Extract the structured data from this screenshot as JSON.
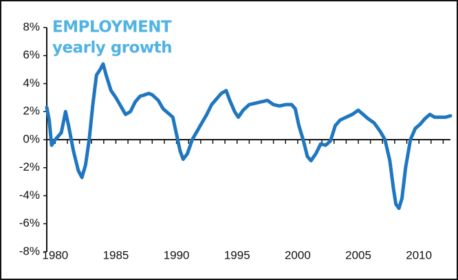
{
  "chart_data": {
    "type": "line",
    "title": "EMPLOYMENT",
    "subtitle": "yearly growth",
    "x": [
      1979.3,
      1979.5,
      1979.7,
      1980.0,
      1980.5,
      1980.85,
      1981.1,
      1981.5,
      1981.9,
      1982.2,
      1982.5,
      1982.8,
      1983.1,
      1983.4,
      1983.7,
      1983.95,
      1984.2,
      1984.6,
      1985.0,
      1985.4,
      1985.8,
      1986.2,
      1986.6,
      1987.0,
      1987.4,
      1987.7,
      1988.0,
      1988.5,
      1988.9,
      1989.3,
      1989.7,
      1990.0,
      1990.3,
      1990.55,
      1990.9,
      1991.3,
      1991.7,
      1992.1,
      1992.5,
      1992.9,
      1993.3,
      1993.7,
      1994.1,
      1994.4,
      1994.8,
      1995.1,
      1995.5,
      1996.0,
      1996.5,
      1997.0,
      1997.5,
      1998.0,
      1998.5,
      1999.0,
      1999.5,
      1999.8,
      2000.1,
      2000.45,
      2000.8,
      2001.1,
      2001.5,
      2001.9,
      2002.3,
      2002.7,
      2003.1,
      2003.5,
      2004.0,
      2004.5,
      2005.0,
      2005.4,
      2005.8,
      2006.3,
      2006.8,
      2007.2,
      2007.6,
      2007.9,
      2008.1,
      2008.35,
      2008.6,
      2008.9,
      2009.3,
      2009.7,
      2010.1,
      2010.5,
      2010.9,
      2011.3,
      2011.8,
      2012.2,
      2012.6
    ],
    "series": [
      {
        "name": "Employment yearly growth",
        "color": "#1f77c0",
        "values": [
          2.3,
          1.4,
          -0.4,
          0.0,
          0.5,
          2.0,
          1.0,
          -0.8,
          -2.2,
          -2.7,
          -1.8,
          0.0,
          2.5,
          4.6,
          5.0,
          5.4,
          4.6,
          3.5,
          3.0,
          2.4,
          1.8,
          2.0,
          2.7,
          3.1,
          3.2,
          3.3,
          3.2,
          2.8,
          2.2,
          1.9,
          1.6,
          0.4,
          -0.8,
          -1.4,
          -1.0,
          0.0,
          0.6,
          1.2,
          1.8,
          2.5,
          2.9,
          3.3,
          3.5,
          2.8,
          2.0,
          1.6,
          2.1,
          2.5,
          2.6,
          2.7,
          2.8,
          2.5,
          2.4,
          2.5,
          2.5,
          2.2,
          1.0,
          0.0,
          -1.2,
          -1.5,
          -1.0,
          -0.3,
          -0.4,
          -0.1,
          1.0,
          1.4,
          1.6,
          1.8,
          2.1,
          1.8,
          1.5,
          1.2,
          0.6,
          0.0,
          -1.5,
          -3.5,
          -4.6,
          -4.9,
          -4.2,
          -2.0,
          0.0,
          0.8,
          1.1,
          1.5,
          1.8,
          1.6,
          1.6,
          1.6,
          1.7
        ]
      }
    ],
    "xlim": [
      1979.3,
      2012.6
    ],
    "xticks": [
      1980,
      1985,
      1990,
      1995,
      2000,
      2005,
      2010
    ],
    "xminor_ticks": [
      1980,
      1981,
      1982,
      1983,
      1984,
      1985,
      1986,
      1987,
      1988,
      1989,
      1990,
      1991,
      1992,
      1993,
      1994,
      1995,
      1996,
      1997,
      1998,
      1999,
      2000,
      2001,
      2002,
      2003,
      2004,
      2005,
      2006,
      2007,
      2008,
      2009,
      2010,
      2011,
      2012
    ],
    "ylim": [
      -8,
      8
    ],
    "yticks": [
      {
        "value": -8,
        "label": "-8%"
      },
      {
        "value": -6,
        "label": "-6%"
      },
      {
        "value": -4,
        "label": "-4%"
      },
      {
        "value": -2,
        "label": "-2%"
      },
      {
        "value": 0,
        "label": "0%"
      },
      {
        "value": 2,
        "label": "2%"
      },
      {
        "value": 4,
        "label": "4%"
      },
      {
        "value": 6,
        "label": "6%"
      },
      {
        "value": 8,
        "label": "8%"
      }
    ],
    "grid": false
  }
}
